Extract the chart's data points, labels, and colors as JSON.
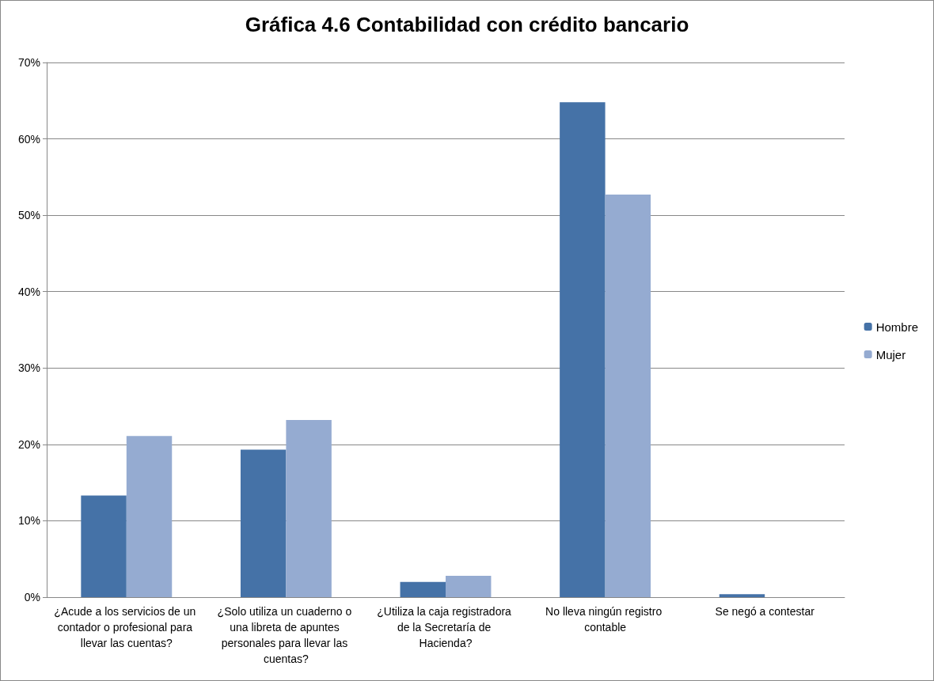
{
  "chart_data": {
    "type": "bar",
    "title": "Gráfica 4.6 Contabilidad con crédito bancario",
    "categories": [
      "¿Acude a los servicios de un contador o profesional para llevar las cuentas?",
      "¿Solo utiliza un cuaderno o una libreta de apuntes personales para llevar las cuentas?",
      "¿Utiliza la caja registradora de la Secretaría de Hacienda?",
      "No lleva ningún registro contable",
      "Se negó a contestar"
    ],
    "series": [
      {
        "name": "Hombre",
        "color": "#4572a7",
        "values": [
          13.3,
          19.3,
          2.0,
          64.8,
          0.4
        ]
      },
      {
        "name": "Mujer",
        "color": "#95abd1",
        "values": [
          21.1,
          23.2,
          2.8,
          52.7,
          0
        ]
      }
    ],
    "ylim": [
      0,
      70
    ],
    "yticks": [
      {
        "value": 0,
        "label": "0%"
      },
      {
        "value": 10,
        "label": "10%"
      },
      {
        "value": 20,
        "label": "20%"
      },
      {
        "value": 30,
        "label": "30%"
      },
      {
        "value": 40,
        "label": "40%"
      },
      {
        "value": 50,
        "label": "50%"
      },
      {
        "value": 60,
        "label": "60%"
      },
      {
        "value": 70,
        "label": "70%"
      }
    ],
    "grid": "y",
    "legend": "right"
  }
}
